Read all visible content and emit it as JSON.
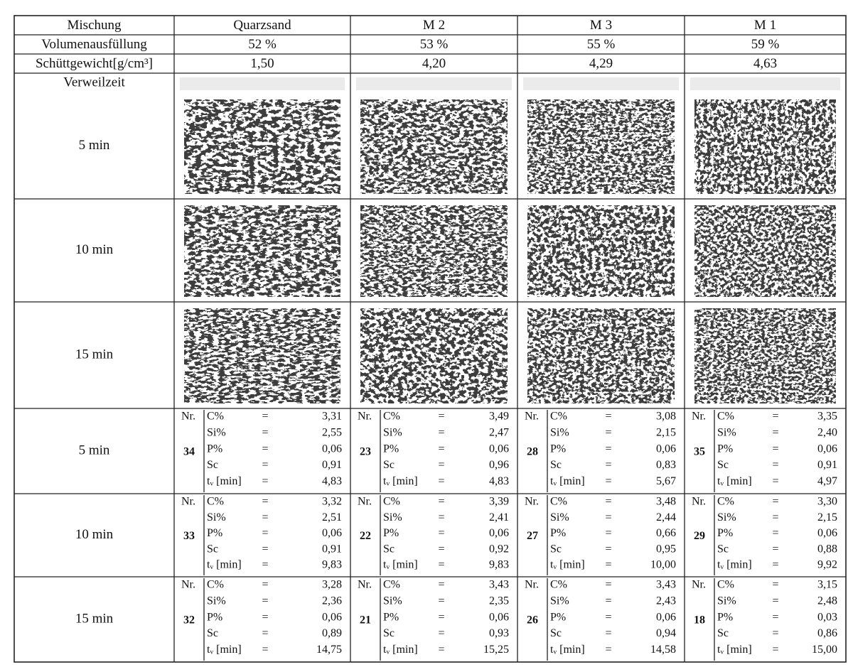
{
  "header": {
    "rows": [
      [
        "Mischung",
        "Quarzsand",
        "M 2",
        "M 3",
        "M 1"
      ],
      [
        "Volumenausfüllung",
        "52 %",
        "53 %",
        "55 %",
        "59 %"
      ],
      [
        "Schüttgewicht[g/cm³]",
        "1,50",
        "4,20",
        "4,29",
        "4,63"
      ]
    ],
    "residence_label": "Verweilzeit"
  },
  "images": {
    "times": [
      "5 min",
      "10 min",
      "15 min"
    ]
  },
  "labels": {
    "nr": "Nr.",
    "eq": "=",
    "params": [
      "C%",
      "Si%",
      "P%",
      "Sc",
      "tᵥ [min]"
    ]
  },
  "results": [
    {
      "time": "5 min",
      "cells": [
        {
          "nr": "34",
          "values": [
            "3,31",
            "2,55",
            "0,06",
            "0,91",
            "4,83"
          ]
        },
        {
          "nr": "23",
          "values": [
            "3,49",
            "2,47",
            "0,06",
            "0,96",
            "4,83"
          ]
        },
        {
          "nr": "28",
          "values": [
            "3,08",
            "2,15",
            "0,06",
            "0,83",
            "5,67"
          ]
        },
        {
          "nr": "35",
          "values": [
            "3,35",
            "2,40",
            "0,06",
            "0,91",
            "4,97"
          ]
        }
      ]
    },
    {
      "time": "10 min",
      "cells": [
        {
          "nr": "33",
          "values": [
            "3,32",
            "2,51",
            "0,06",
            "0,91",
            "9,83"
          ]
        },
        {
          "nr": "22",
          "values": [
            "3,39",
            "2,41",
            "0,06",
            "0,92",
            "9,83"
          ]
        },
        {
          "nr": "27",
          "values": [
            "3,48",
            "2,44",
            "0,66",
            "0,95",
            "10,00"
          ]
        },
        {
          "nr": "29",
          "values": [
            "3,30",
            "2,15",
            "0,06",
            "0,88",
            "9,92"
          ]
        }
      ]
    },
    {
      "time": "15 min",
      "cells": [
        {
          "nr": "32",
          "values": [
            "3,28",
            "2,36",
            "0,06",
            "0,89",
            "14,75"
          ]
        },
        {
          "nr": "21",
          "values": [
            "3,43",
            "2,35",
            "0,06",
            "0,93",
            "15,25"
          ]
        },
        {
          "nr": "26",
          "values": [
            "3,43",
            "2,43",
            "0,06",
            "0,94",
            "14,58"
          ]
        },
        {
          "nr": "18",
          "values": [
            "3,15",
            "2,48",
            "0,03",
            "0,86",
            "15,00"
          ]
        }
      ]
    }
  ]
}
